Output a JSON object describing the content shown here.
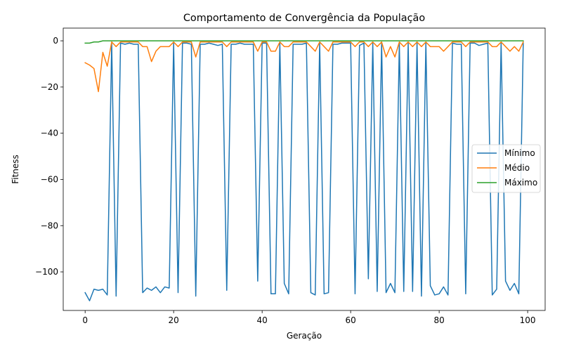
{
  "chart_data": {
    "type": "line",
    "title": "Comportamento de Convergência da População",
    "xlabel": "Geração",
    "ylabel": "Fitness",
    "xlim": [
      -4.95,
      103.95
    ],
    "ylim": [
      -116.7,
      5.5
    ],
    "xticks": [
      0,
      20,
      40,
      60,
      80,
      100
    ],
    "yticks": [
      0,
      -20,
      -40,
      -60,
      -80,
      -100
    ],
    "xtick_labels": [
      "0",
      "20",
      "40",
      "60",
      "80",
      "100"
    ],
    "ytick_labels": [
      "0",
      "−20",
      "−40",
      "−60",
      "−80",
      "−100"
    ],
    "grid": false,
    "legend_position": "center-right",
    "x": [
      0,
      1,
      2,
      3,
      4,
      5,
      6,
      7,
      8,
      9,
      10,
      11,
      12,
      13,
      14,
      15,
      16,
      17,
      18,
      19,
      20,
      21,
      22,
      23,
      24,
      25,
      26,
      27,
      28,
      29,
      30,
      31,
      32,
      33,
      34,
      35,
      36,
      37,
      38,
      39,
      40,
      41,
      42,
      43,
      44,
      45,
      46,
      47,
      48,
      49,
      50,
      51,
      52,
      53,
      54,
      55,
      56,
      57,
      58,
      59,
      60,
      61,
      62,
      63,
      64,
      65,
      66,
      67,
      68,
      69,
      70,
      71,
      72,
      73,
      74,
      75,
      76,
      77,
      78,
      79,
      80,
      81,
      82,
      83,
      84,
      85,
      86,
      87,
      88,
      89,
      90,
      91,
      92,
      93,
      94,
      95,
      96,
      97,
      98,
      99
    ],
    "series": [
      {
        "name": "Mínimo",
        "color": "#1f77b4",
        "values": [
          -109,
          -112.5,
          -107.5,
          -108,
          -107.5,
          -110,
          -1,
          -110.5,
          -1,
          -1.5,
          -1,
          -1.5,
          -1.5,
          -109,
          -107,
          -108,
          -106.5,
          -109,
          -106.5,
          -107,
          -1,
          -109,
          -1,
          -1,
          -1.5,
          -110.5,
          -1.5,
          -1.5,
          -1,
          -1.5,
          -2,
          -1.5,
          -108,
          -1.5,
          -1.5,
          -1,
          -1.5,
          -1.5,
          -1.5,
          -104,
          -1,
          -1,
          -109.5,
          -109.5,
          -1,
          -105,
          -109.5,
          -1.5,
          -1.5,
          -1.5,
          -1,
          -109,
          -110,
          -1,
          -109.5,
          -109,
          -1.5,
          -1.5,
          -1,
          -1,
          -1,
          -109.5,
          -2,
          -1,
          -103,
          -1,
          -108.5,
          -1,
          -109,
          -105,
          -109,
          -1,
          -108.5,
          -1,
          -108.5,
          -1,
          -110.5,
          -1,
          -106,
          -110,
          -109.5,
          -106.5,
          -110,
          -1,
          -1.5,
          -1.5,
          -109.5,
          -1,
          -1,
          -2,
          -1.5,
          -1,
          -110,
          -107.5,
          -1,
          -104,
          -108,
          -105,
          -109.5,
          -1
        ]
      },
      {
        "name": "Médio",
        "color": "#ff7f0e",
        "values": [
          -9.5,
          -10.5,
          -12,
          -22,
          -5,
          -11,
          -0.5,
          -2.5,
          -0.5,
          -0.5,
          -0.5,
          -0.5,
          -0.5,
          -2.5,
          -2.5,
          -9,
          -4.5,
          -2.5,
          -2.5,
          -2.5,
          -0.5,
          -2.5,
          -0.5,
          -0.5,
          -0.5,
          -7,
          -0.5,
          -0.5,
          -0.5,
          -0.5,
          -0.5,
          -0.5,
          -2.5,
          -0.5,
          -0.5,
          -0.5,
          -0.5,
          -0.5,
          -0.5,
          -4.5,
          -0.5,
          -0.5,
          -4.5,
          -4.5,
          -0.5,
          -2.5,
          -2.5,
          -0.5,
          -0.5,
          -0.5,
          -0.5,
          -2.5,
          -4.5,
          -0.5,
          -2.5,
          -4.5,
          -0.5,
          -0.5,
          -0.5,
          -0.5,
          -0.5,
          -2.5,
          -0.5,
          -0.5,
          -2.5,
          -0.5,
          -2.5,
          -0.5,
          -7,
          -2.5,
          -7,
          -0.5,
          -2.5,
          -0.5,
          -2.5,
          -0.5,
          -2.5,
          -0.5,
          -2.5,
          -2.5,
          -2.5,
          -4.5,
          -2.5,
          -0.5,
          -0.5,
          -0.5,
          -2.5,
          -0.5,
          -0.5,
          -0.5,
          -0.5,
          -0.5,
          -2.5,
          -2.5,
          -0.5,
          -2.5,
          -4.5,
          -2.5,
          -4.5,
          -0.5
        ]
      },
      {
        "name": "Máximo",
        "color": "#2ca02c",
        "values": [
          -1,
          -1,
          -0.5,
          -0.5,
          0,
          0,
          0,
          0,
          0,
          0,
          0,
          0,
          0,
          0,
          0,
          0,
          0,
          0,
          0,
          0,
          0,
          0,
          0,
          0,
          0,
          0,
          0,
          0,
          0,
          0,
          0,
          0,
          0,
          0,
          0,
          0,
          0,
          0,
          0,
          0,
          0,
          0,
          0,
          0,
          0,
          0,
          0,
          0,
          0,
          0,
          0,
          0,
          0,
          0,
          0,
          0,
          0,
          0,
          0,
          0,
          0,
          0,
          0,
          0,
          0,
          0,
          0,
          0,
          0,
          0,
          0,
          0,
          0,
          0,
          0,
          0,
          0,
          0,
          0,
          0,
          0,
          0,
          0,
          0,
          0,
          0,
          0,
          0,
          0,
          0,
          0,
          0,
          0,
          0,
          0,
          0,
          0,
          0,
          0,
          0
        ]
      }
    ]
  }
}
